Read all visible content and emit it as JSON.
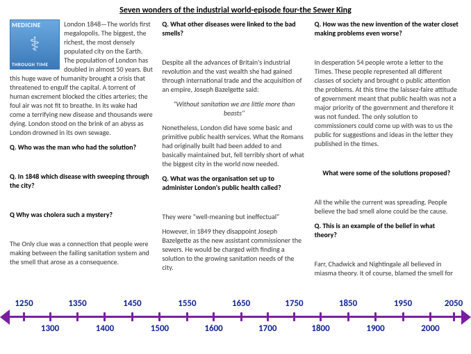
{
  "title": "Seven wonders of the industrial world-episode four-the Sewer King",
  "logo": {
    "top": "MEDICINE",
    "bottom": "THROUGH TIME"
  },
  "col1": {
    "intro": "London 1848—The worlds first megalopolis. The biggest, the richest, the most densely populated city on the Earth. The population of London has doubled in almost 50 years. But this huge wave of humanity brought a crisis that threatened to engulf the capital. A torrent of human excrement blocked the cities arteries; the foul air was not fit to breathe. In its wake had come a terrifying new disease and thousands were dying. London stood on the brink of an abyss as London drowned in its own sewage.",
    "q1": "Q. Who was the man who had the solution?",
    "q2": "Q. In 1848 which disease with sweeping through the city?",
    "q3": "Q Why was cholera such a mystery?",
    "p1": "The Only clue was a connection that people were making between the failing sanitation system and the smell that arose as a consequence."
  },
  "col2": {
    "q1": "Q. What other diseases were linked to the bad smells?",
    "p1": "Despite all the advances of Britain's industrial revolution and the vast wealth she had gained through international trade and the acquisition of an empire, Joseph Bazelgette said:",
    "quote": "\"Without sanitation we are little more than beasts\"",
    "p2": "Nonetheless, London did have some basic and primitive public health services. What the Romans had originally built had been added to and basically maintained but, fell terribly short of what the biggest city in the world now needed.",
    "q2": "Q. What was the organisation set up to administer London's public health called?",
    "p3": "They were \"well-meaning but ineffectual\"",
    "p4": "However, in 1849 they disappoint Joseph Bazelgette as the new assistant commissioner the sewers. He would be charged with finding a solution to the growing sanitation needs of the city."
  },
  "col3": {
    "q1": "Q. How was the new invention of the water closet making problems even worse?",
    "p1": "In desperation 54 people wrote a letter to the Times. These people represented all different classes of society and brought o public attention the problems. At this time the laissez-faire attitude of government meant that public health was not a major priority of the government and therefore it was not funded. The only solution to commissioners could come up with was to us the public for suggestions and ideas in the letter they published in the times.",
    "q2": "What were some of the solutions proposed?",
    "p2": "All the while the current was spreading. People believe the bad smell alone could be the cause.",
    "q3": "Q. This is an example of the belief in what theory?",
    "p3": "Farr, Chadwick and Nightingale all believed in miasma theory. It of course, blamed the smell for"
  },
  "timeline": {
    "line_color": "#7a1fa0",
    "label_color": "#0a1f8f",
    "ticks": [
      {
        "label": "1250",
        "pos": 3.5,
        "side": "top"
      },
      {
        "label": "1300",
        "pos": 9.2,
        "side": "bot"
      },
      {
        "label": "1350",
        "pos": 15.2,
        "side": "top"
      },
      {
        "label": "1400",
        "pos": 21.2,
        "side": "bot"
      },
      {
        "label": "1450",
        "pos": 27.2,
        "side": "top"
      },
      {
        "label": "1500",
        "pos": 33.2,
        "side": "bot"
      },
      {
        "label": "1550",
        "pos": 39.2,
        "side": "top"
      },
      {
        "label": "1600",
        "pos": 45.0,
        "side": "bot"
      },
      {
        "label": "1650",
        "pos": 51.0,
        "side": "top"
      },
      {
        "label": "1700",
        "pos": 56.8,
        "side": "bot"
      },
      {
        "label": "1750",
        "pos": 62.6,
        "side": "top"
      },
      {
        "label": "1800",
        "pos": 68.4,
        "side": "bot"
      },
      {
        "label": "1850",
        "pos": 74.4,
        "side": "top"
      },
      {
        "label": "1900",
        "pos": 80.4,
        "side": "bot"
      },
      {
        "label": "1950",
        "pos": 86.4,
        "side": "top"
      },
      {
        "label": "2000",
        "pos": 92.4,
        "side": "bot"
      },
      {
        "label": "2050",
        "pos": 97.5,
        "side": "top"
      }
    ]
  }
}
